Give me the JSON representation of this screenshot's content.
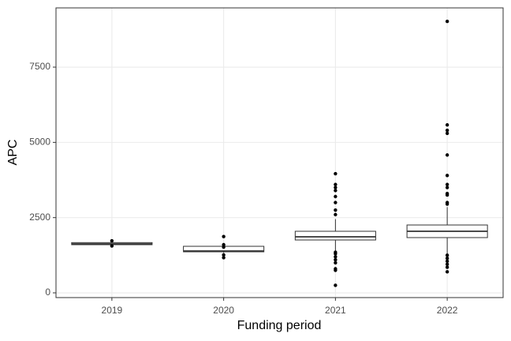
{
  "chart_data": {
    "type": "boxplot",
    "x_label": "Funding period",
    "y_label": "APC",
    "categories": [
      "2019",
      "2020",
      "2021",
      "2022"
    ],
    "boxes": [
      {
        "whisker_low": 1590,
        "q1": 1600,
        "median": 1625,
        "q3": 1670,
        "whisker_high": 1680,
        "outliers": [
          1730,
          1560
        ]
      },
      {
        "whisker_low": 1330,
        "q1": 1364,
        "median": 1390,
        "q3": 1547,
        "whisker_high": 1560,
        "outliers": [
          1870,
          1600,
          1520,
          1260,
          1170
        ]
      },
      {
        "whisker_low": 1400,
        "q1": 1757,
        "median": 1862,
        "q3": 2046,
        "whisker_high": 2450,
        "outliers": [
          3960,
          3600,
          3500,
          3400,
          3200,
          3000,
          2750,
          2600,
          1350,
          1300,
          1200,
          1100,
          1000,
          800,
          750,
          250
        ]
      },
      {
        "whisker_low": 1300,
        "q1": 1836,
        "median": 2046,
        "q3": 2255,
        "whisker_high": 2850,
        "outliers": [
          9020,
          5580,
          5400,
          5300,
          4580,
          3900,
          3600,
          3500,
          3300,
          3250,
          3000,
          2950,
          1250,
          1150,
          1050,
          950,
          850,
          700
        ]
      }
    ],
    "ylim": [
      -157,
      9468
    ],
    "yticks": [
      0,
      2500,
      5000,
      7500
    ],
    "grid": true,
    "box_color": "#333333",
    "point_color": "#000000"
  }
}
